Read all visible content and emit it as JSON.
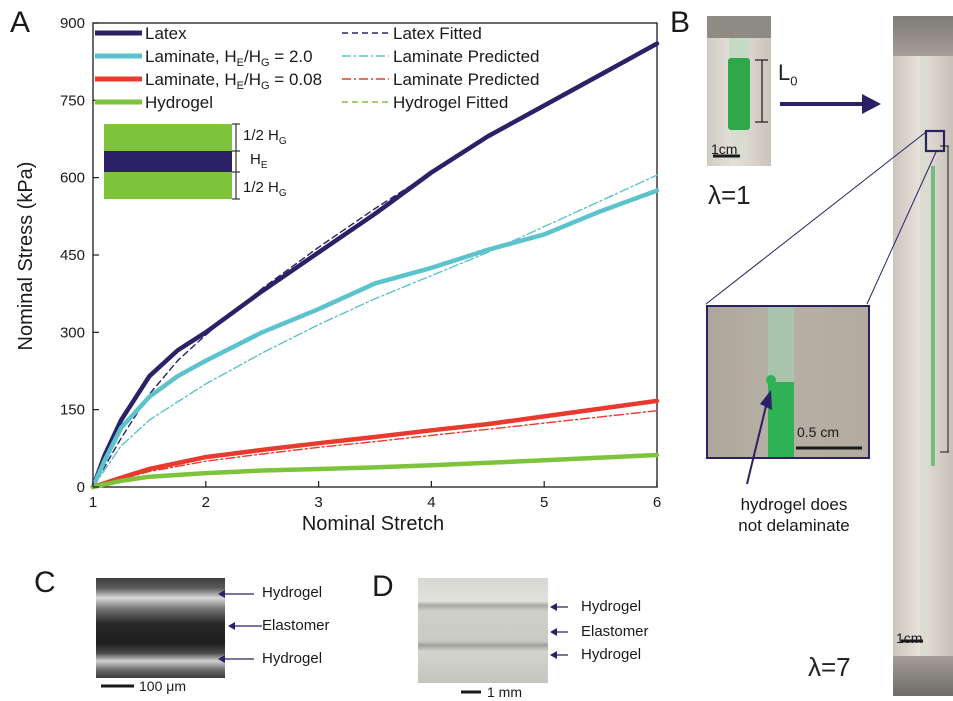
{
  "panels": {
    "a": "A",
    "b": "B",
    "c": "C",
    "d": "D"
  },
  "colors": {
    "latex": "#2a2166",
    "laminate_2": "#5cc3cc",
    "laminate_008": "#e83a2e",
    "hydrogel": "#7dc43c",
    "navy": "#2a2166"
  },
  "chart_data": {
    "type": "line",
    "xlabel": "Nominal Stretch",
    "ylabel": "Nominal Stress (kPa)",
    "xlim": [
      1,
      6
    ],
    "ylim": [
      0,
      900
    ],
    "xticks": [
      "1",
      "2",
      "3",
      "4",
      "5",
      "6"
    ],
    "yticks": [
      "0",
      "150",
      "300",
      "450",
      "600",
      "750",
      "900"
    ],
    "legend_position": "top",
    "series": [
      {
        "name": "Latex",
        "style": "solid",
        "color": "#2a2166",
        "x": [
          1,
          1.1,
          1.25,
          1.5,
          1.75,
          2,
          2.5,
          3,
          3.5,
          4,
          4.5,
          5,
          5.5,
          6
        ],
        "y": [
          0,
          60,
          130,
          215,
          265,
          300,
          380,
          455,
          530,
          610,
          680,
          740,
          800,
          860
        ]
      },
      {
        "name": "Latex Fitted",
        "style": "dash",
        "color": "#2a2166",
        "x": [
          1,
          1.25,
          1.5,
          1.75,
          2,
          2.5,
          3,
          3.5,
          4,
          4.5,
          5,
          5.5,
          6
        ],
        "y": [
          0,
          95,
          180,
          245,
          295,
          385,
          465,
          540,
          610,
          680,
          740,
          800,
          860
        ]
      },
      {
        "name": "Laminate, H_E/H_G = 2.0",
        "style": "solid",
        "color": "#5cc3cc",
        "x": [
          1,
          1.1,
          1.25,
          1.5,
          1.75,
          2,
          2.5,
          3,
          3.5,
          4,
          4.5,
          5,
          5.5,
          6
        ],
        "y": [
          0,
          50,
          115,
          175,
          215,
          245,
          300,
          345,
          395,
          425,
          460,
          490,
          535,
          575
        ]
      },
      {
        "name": "Laminate Predicted",
        "style": "dashdot",
        "color": "#5cc3cc",
        "x": [
          1,
          1.25,
          1.5,
          1.75,
          2,
          2.5,
          3,
          3.5,
          4,
          4.5,
          5,
          5.5,
          6
        ],
        "y": [
          0,
          80,
          130,
          165,
          200,
          260,
          315,
          365,
          410,
          455,
          505,
          555,
          605
        ]
      },
      {
        "name": "Laminate, H_E/H_G = 0.08",
        "style": "solid",
        "color": "#e83a2e",
        "x": [
          1,
          1.25,
          1.5,
          2,
          2.5,
          3,
          3.5,
          4,
          4.5,
          5,
          5.5,
          6
        ],
        "y": [
          0,
          18,
          35,
          58,
          72,
          85,
          97,
          110,
          122,
          137,
          152,
          167
        ]
      },
      {
        "name": "Laminate Predicted",
        "style": "dashdot",
        "color": "#e83a2e",
        "x": [
          1,
          1.5,
          2,
          2.5,
          3,
          3.5,
          4,
          4.5,
          5,
          5.5,
          6
        ],
        "y": [
          0,
          30,
          50,
          64,
          77,
          88,
          100,
          112,
          124,
          136,
          148
        ]
      },
      {
        "name": "Hydrogel",
        "style": "solid",
        "color": "#7dc43c",
        "x": [
          1,
          1.25,
          1.5,
          2,
          2.5,
          3,
          3.5,
          4,
          4.5,
          5,
          5.5,
          6
        ],
        "y": [
          0,
          12,
          20,
          27,
          32,
          35,
          38,
          42,
          47,
          52,
          57,
          62
        ]
      },
      {
        "name": "Hydrogel Fitted",
        "style": "dash",
        "color": "#7dc43c",
        "x": [
          1,
          1.5,
          2,
          2.5,
          3,
          3.5,
          4,
          4.5,
          5,
          5.5,
          6
        ],
        "y": [
          0,
          20,
          28,
          32,
          35,
          38,
          42,
          47,
          52,
          57,
          62
        ]
      }
    ]
  },
  "legend": {
    "left": [
      {
        "key": "latex",
        "prefix": "Latex",
        "sub": "",
        "mid": "",
        "sub2": "",
        "suffix": ""
      },
      {
        "key": "laminate_2",
        "prefix": "Laminate, H",
        "sub": "E",
        "mid": "/H",
        "sub2": "G",
        "suffix": " = 2.0"
      },
      {
        "key": "laminate_008",
        "prefix": "Laminate, H",
        "sub": "E",
        "mid": "/H",
        "sub2": "G",
        "suffix": " = 0.08"
      },
      {
        "key": "hydrogel",
        "prefix": "Hydrogel",
        "sub": "",
        "mid": "",
        "sub2": "",
        "suffix": ""
      }
    ],
    "right": [
      "Latex Fitted",
      "Laminate Predicted",
      "Laminate Predicted",
      "Hydrogel Fitted"
    ]
  },
  "inset": {
    "top": "1/2 H",
    "top_sub": "G",
    "mid": "H",
    "mid_sub": "E",
    "bottom": "1/2 H",
    "bottom_sub": "G"
  },
  "panel_b": {
    "length_label": "L",
    "length_sub": "0",
    "scale_small": "1cm",
    "lambda_1": "λ=1",
    "zoom_scale": "0.5 cm",
    "annotation": [
      "hydrogel does",
      "not delaminate"
    ],
    "scale_right": "1cm",
    "lambda_7": "λ=7"
  },
  "panel_c": {
    "labels": [
      "Hydrogel",
      "Elastomer",
      "Hydrogel"
    ],
    "scale": "100 μm"
  },
  "panel_d": {
    "labels": [
      "Hydrogel",
      "Elastomer",
      "Hydrogel"
    ],
    "scale": "1 mm"
  }
}
